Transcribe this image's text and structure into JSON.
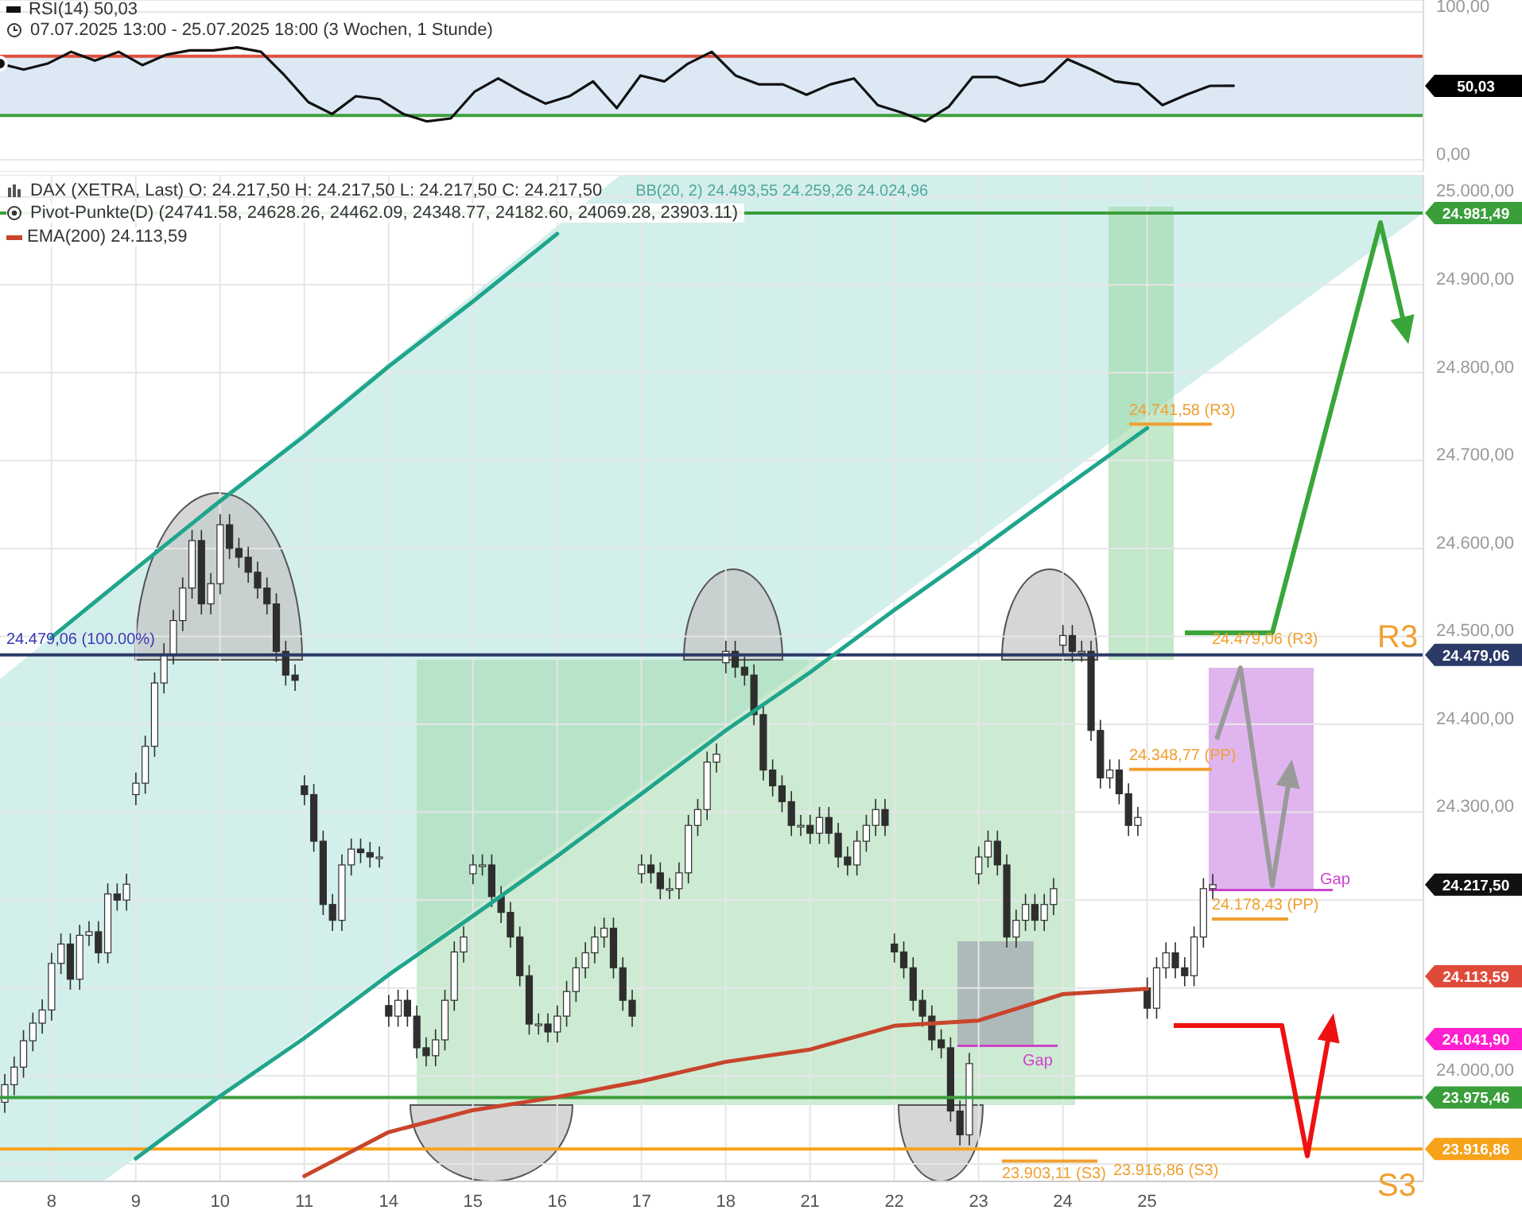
{
  "chart_data": [
    {
      "type": "line",
      "title": "RSI(14) 50,03",
      "subtitle": "07.07.2025 13:00 - 25.07.2025 18:00  (3 Wochen, 1 Stunde)",
      "categories": [
        null,
        null,
        null,
        null,
        null,
        null,
        null,
        null,
        null,
        null,
        null,
        null,
        null,
        null,
        null,
        null,
        null,
        null,
        null,
        null,
        null,
        null,
        null,
        null,
        null,
        null,
        null,
        null,
        null,
        null,
        null,
        null,
        null,
        null,
        null,
        null,
        null,
        null,
        null,
        null,
        null,
        null,
        null,
        null,
        null,
        null,
        null,
        null,
        null,
        null,
        null,
        null,
        null,
        null,
        null,
        null,
        null,
        null,
        null,
        null,
        null
      ],
      "values": [
        65,
        61,
        65,
        73,
        67,
        73,
        64,
        71,
        74,
        74,
        76,
        73,
        57,
        39,
        31,
        43,
        41,
        31,
        26,
        28,
        46,
        55,
        46,
        38,
        43,
        53,
        35,
        57,
        53,
        65,
        73,
        57,
        51,
        51,
        44,
        51,
        55,
        37,
        32,
        26,
        36,
        56,
        56,
        50,
        53,
        68,
        61,
        53,
        51,
        37,
        44,
        50,
        50.03,
        null,
        null,
        null,
        null,
        null,
        null,
        null,
        null
      ],
      "color": "#111111",
      "ylim": [
        -8,
        108
      ],
      "yticks": [
        {
          "value": 100,
          "label": "100,00"
        },
        {
          "value": 0,
          "label": "0,00"
        }
      ],
      "grid": "y",
      "ref_lines": [
        {
          "axis": "y",
          "value": 70,
          "color": "#e0503f"
        },
        {
          "axis": "y",
          "value": 30,
          "color": "#3f9f3f"
        }
      ],
      "bands": [
        {
          "axis": "y",
          "from": 30,
          "to": 70,
          "color": "#dce9f5"
        }
      ],
      "annotations": [
        "50,03"
      ]
    },
    {
      "type": "candlestick",
      "title": "DAX (XETRA, Last) O: 24.217,50 H: 24.217,50 L: 24.217,50 C: 24.217,50",
      "subtitle": "Pivot-Punkte(D) (24741.58, 24628.26, 24462.09, 24348.77, 24182.60, 24069.28, 23903.11)",
      "categories": [
        null,
        null,
        null,
        null,
        null,
        "8",
        null,
        null,
        null,
        null,
        null,
        null,
        null,
        null,
        "9",
        null,
        null,
        null,
        null,
        null,
        null,
        null,
        null,
        "10",
        null,
        null,
        null,
        null,
        null,
        null,
        null,
        null,
        "11",
        null,
        null,
        null,
        null,
        null,
        null,
        null,
        null,
        "14",
        null,
        null,
        null,
        null,
        null,
        null,
        null,
        null,
        "15",
        null,
        null,
        null,
        null,
        null,
        null,
        null,
        null,
        "16",
        null,
        null,
        null,
        null,
        null,
        null,
        null,
        null,
        "17",
        null,
        null,
        null,
        null,
        null,
        null,
        null,
        null,
        "18",
        null,
        null,
        null,
        null,
        null,
        null,
        null,
        null,
        "21",
        null,
        null,
        null,
        null,
        null,
        null,
        null,
        null,
        "22",
        null,
        null,
        null,
        null,
        null,
        null,
        null,
        null,
        "23",
        null,
        null,
        null,
        null,
        null,
        null,
        null,
        null,
        "24",
        null,
        null,
        null,
        null,
        null,
        null,
        null,
        null,
        "25",
        null,
        null,
        null,
        null,
        null,
        null,
        null,
        null,
        null,
        null,
        null,
        null,
        null,
        null,
        null,
        null,
        null,
        null,
        null,
        null,
        null,
        null,
        null,
        null,
        null,
        null,
        null,
        null,
        null
      ],
      "ohlc": [
        [
          23970,
          24002,
          23958,
          23990
        ],
        [
          23990,
          24022,
          23978,
          24010
        ],
        [
          24010,
          24052,
          23998,
          24040
        ],
        [
          24040,
          24072,
          24028,
          24060
        ],
        [
          24060,
          24087,
          24048,
          24075
        ],
        [
          24075,
          24140,
          24063,
          24128
        ],
        [
          24128,
          24162,
          24116,
          24150
        ],
        [
          24150,
          24162,
          24098,
          24110
        ],
        [
          24110,
          24172,
          24098,
          24160
        ],
        [
          24160,
          24176,
          24148,
          24164
        ],
        [
          24164,
          24176,
          24128,
          24140
        ],
        [
          24140,
          24219,
          24128,
          24207
        ],
        [
          24207,
          24219,
          24188,
          24200
        ],
        [
          24200,
          24230,
          24188,
          24218
        ],
        [
          24320,
          24345,
          24308,
          24333
        ],
        [
          24333,
          24387,
          24321,
          24375
        ],
        [
          24375,
          24459,
          24363,
          24447
        ],
        [
          24447,
          24492,
          24435,
          24480
        ],
        [
          24480,
          24530,
          24468,
          24518
        ],
        [
          24518,
          24567,
          24506,
          24555
        ],
        [
          24555,
          24621,
          24543,
          24609
        ],
        [
          24609,
          24621,
          24525,
          24537
        ],
        [
          24537,
          24572,
          24525,
          24560
        ],
        [
          24560,
          24639,
          24548,
          24627
        ],
        [
          24627,
          24639,
          24588,
          24600
        ],
        [
          24600,
          24612,
          24578,
          24590
        ],
        [
          24590,
          24602,
          24561,
          24573
        ],
        [
          24573,
          24585,
          24543,
          24555
        ],
        [
          24555,
          24567,
          24525,
          24537
        ],
        [
          24537,
          24549,
          24471,
          24483
        ],
        [
          24483,
          24495,
          24444,
          24456
        ],
        [
          24456,
          24468,
          24438,
          24450
        ],
        [
          24330,
          24342,
          24308,
          24320
        ],
        [
          24320,
          24332,
          24255,
          24267
        ],
        [
          24267,
          24279,
          24183,
          24195
        ],
        [
          24195,
          24207,
          24165,
          24177
        ],
        [
          24177,
          24252,
          24165,
          24240
        ],
        [
          24240,
          24270,
          24228,
          24258
        ],
        [
          24258,
          24270,
          24242,
          24254
        ],
        [
          24254,
          24266,
          24237,
          24249
        ],
        [
          24249,
          24261,
          24237,
          24249
        ],
        [
          24080,
          24092,
          24056,
          24068
        ],
        [
          24068,
          24098,
          24056,
          24086
        ],
        [
          24086,
          24098,
          24056,
          24068
        ],
        [
          24068,
          24080,
          24020,
          24032
        ],
        [
          24032,
          24044,
          24011,
          24023
        ],
        [
          24023,
          24053,
          24011,
          24041
        ],
        [
          24041,
          24098,
          24029,
          24086
        ],
        [
          24086,
          24153,
          24074,
          24141
        ],
        [
          24141,
          24170,
          24129,
          24158
        ],
        [
          24230,
          24252,
          24218,
          24240
        ],
        [
          24240,
          24252,
          24228,
          24240
        ],
        [
          24240,
          24252,
          24192,
          24204
        ],
        [
          24204,
          24216,
          24174,
          24186
        ],
        [
          24186,
          24198,
          24146,
          24158
        ],
        [
          24158,
          24170,
          24102,
          24114
        ],
        [
          24114,
          24126,
          24047,
          24059
        ],
        [
          24059,
          24071,
          24047,
          24059
        ],
        [
          24059,
          24071,
          24038,
          24050
        ],
        [
          24050,
          24080,
          24038,
          24068
        ],
        [
          24068,
          24108,
          24056,
          24096
        ],
        [
          24096,
          24135,
          24084,
          24123
        ],
        [
          24123,
          24152,
          24111,
          24140
        ],
        [
          24140,
          24170,
          24128,
          24158
        ],
        [
          24158,
          24180,
          24146,
          24168
        ],
        [
          24168,
          24180,
          24111,
          24123
        ],
        [
          24123,
          24135,
          24074,
          24086
        ],
        [
          24086,
          24098,
          24056,
          24068
        ],
        [
          24230,
          24252,
          24219,
          24240
        ],
        [
          24240,
          24252,
          24219,
          24231
        ],
        [
          24231,
          24243,
          24201,
          24213
        ],
        [
          24213,
          24225,
          24201,
          24213
        ],
        [
          24213,
          24243,
          24201,
          24231
        ],
        [
          24231,
          24297,
          24219,
          24285
        ],
        [
          24285,
          24315,
          24273,
          24303
        ],
        [
          24303,
          24369,
          24291,
          24357
        ],
        [
          24357,
          24378,
          24345,
          24366
        ],
        [
          24470,
          24495,
          24458,
          24483
        ],
        [
          24483,
          24495,
          24453,
          24465
        ],
        [
          24465,
          24477,
          24444,
          24456
        ],
        [
          24456,
          24468,
          24399,
          24411
        ],
        [
          24411,
          24423,
          24336,
          24348
        ],
        [
          24348,
          24360,
          24318,
          24330
        ],
        [
          24330,
          24342,
          24300,
          24312
        ],
        [
          24312,
          24324,
          24273,
          24285
        ],
        [
          24285,
          24297,
          24273,
          24285
        ],
        [
          24285,
          24297,
          24264,
          24276
        ],
        [
          24276,
          24306,
          24264,
          24294
        ],
        [
          24294,
          24306,
          24264,
          24276
        ],
        [
          24276,
          24288,
          24237,
          24249
        ],
        [
          24249,
          24261,
          24228,
          24240
        ],
        [
          24240,
          24279,
          24228,
          24267
        ],
        [
          24267,
          24297,
          24255,
          24285
        ],
        [
          24285,
          24315,
          24273,
          24303
        ],
        [
          24303,
          24315,
          24273,
          24285
        ],
        [
          24150,
          24162,
          24129,
          24141
        ],
        [
          24141,
          24153,
          24111,
          24123
        ],
        [
          24123,
          24135,
          24074,
          24086
        ],
        [
          24086,
          24098,
          24056,
          24068
        ],
        [
          24068,
          24080,
          24029,
          24041
        ],
        [
          24041,
          24053,
          24020,
          24032
        ],
        [
          24032,
          24044,
          23948,
          23960
        ],
        [
          23960,
          23972,
          23921,
          23933
        ],
        [
          23933,
          24026,
          23921,
          24014
        ],
        [
          24230,
          24261,
          24218,
          24249
        ],
        [
          24249,
          24279,
          24237,
          24267
        ],
        [
          24267,
          24279,
          24228,
          24240
        ],
        [
          24240,
          24252,
          24146,
          24158
        ],
        [
          24158,
          24189,
          24146,
          24177
        ],
        [
          24177,
          24207,
          24165,
          24195
        ],
        [
          24195,
          24207,
          24165,
          24177
        ],
        [
          24177,
          24207,
          24165,
          24195
        ],
        [
          24195,
          24225,
          24183,
          24213
        ],
        [
          24490,
          24513,
          24478,
          24501
        ],
        [
          24501,
          24513,
          24471,
          24483
        ],
        [
          24483,
          24495,
          24471,
          24483
        ],
        [
          24483,
          24495,
          24381,
          24393
        ],
        [
          24393,
          24405,
          24327,
          24339
        ],
        [
          24339,
          24360,
          24327,
          24348
        ],
        [
          24348,
          24360,
          24309,
          24321
        ],
        [
          24321,
          24333,
          24273,
          24285
        ],
        [
          24285,
          24306,
          24273,
          24294
        ],
        [
          24100,
          24112,
          24065,
          24077
        ],
        [
          24077,
          24135,
          24065,
          24123
        ],
        [
          24123,
          24152,
          24111,
          24140
        ],
        [
          24140,
          24152,
          24111,
          24123
        ],
        [
          24123,
          24135,
          24102,
          24114
        ],
        [
          24114,
          24170,
          24102,
          24158
        ],
        [
          24158,
          24225,
          24146,
          24213
        ],
        [
          24213,
          24229.5,
          24201,
          24217.5
        ],
        null,
        null,
        null,
        null,
        null,
        null,
        null,
        null,
        null,
        null,
        null,
        null,
        null,
        null,
        null,
        null,
        null,
        null,
        null,
        null,
        null,
        null
      ],
      "color": "#2e2e2e",
      "series": [
        {
          "type": "line",
          "name": "EMA(200) 24.113,59",
          "color": "#c8452b",
          "x": [
            "11",
            "14",
            "15",
            "16",
            "17",
            "18",
            "21",
            "22",
            "23",
            "24",
            "25"
          ],
          "values": [
            23886,
            23936,
            23961,
            23976,
            23994,
            24016,
            24030,
            24057,
            24063,
            24093,
            24099
          ]
        },
        {
          "type": "line",
          "color": "#1fa58c",
          "x": [
            "8",
            "9",
            "10",
            "11",
            "14",
            "15",
            "16"
          ],
          "values": [
            24499,
            24577,
            24654,
            24728,
            24807,
            24881,
            24958
          ]
        },
        {
          "type": "line",
          "color": "#1fa58c",
          "x": [
            "9",
            "10",
            "11",
            "14",
            "15",
            "16",
            "17",
            "18",
            "21",
            "22",
            "23",
            "24",
            "25"
          ],
          "values": [
            23906,
            23977,
            24043,
            24115,
            24182,
            24250,
            24321,
            24393,
            24459,
            24530,
            24598,
            24668,
            24737
          ]
        }
      ],
      "ylim": [
        23880,
        25025
      ],
      "yticks": [
        {
          "value": 23900,
          "label": null
        },
        {
          "value": 24000,
          "label": "24.000,00"
        },
        {
          "value": 24100,
          "label": null
        },
        {
          "value": 24200,
          "label": null
        },
        {
          "value": 24300,
          "label": "24.300,00"
        },
        {
          "value": 24400,
          "label": "24.400,00"
        },
        {
          "value": 24500,
          "label": "24.500,00"
        },
        {
          "value": 24600,
          "label": "24.600,00"
        },
        {
          "value": 24700,
          "label": "24.700,00"
        },
        {
          "value": 24800,
          "label": "24.800,00"
        },
        {
          "value": 24900,
          "label": "24.900,00"
        },
        {
          "value": 25000,
          "label": "25.000,00"
        }
      ],
      "grid": true,
      "legend": "top left",
      "ref_lines": [
        {
          "axis": "y",
          "value": 24981.49,
          "label": "24.981,49",
          "color": "#3a9e3a"
        },
        {
          "axis": "y",
          "value": 24479.06,
          "label": "24.479,06",
          "color": "#2b3a67"
        },
        {
          "axis": "y",
          "value": 23975.46,
          "label": "23.975,46",
          "color": "#3a9e3a"
        },
        {
          "axis": "y",
          "value": 23916.86,
          "label": "23.916,86",
          "color": "#f7a21b"
        }
      ],
      "annotations": [
        "BB(20, 2) 24.493,55 24.259,26 24.024,96",
        "24.479,06 (100.00%)",
        "24.741,58 (R3)",
        "24.479,06 (R3)",
        "24.348,77 (PP)",
        "24.178,43 (PP)",
        "23.916,86 (S3)",
        "23.903,11 (S3)",
        "R3",
        "S3",
        "Gap",
        "Gap",
        "24.113,59",
        "24.041,90",
        "24.217,50"
      ]
    }
  ]
}
